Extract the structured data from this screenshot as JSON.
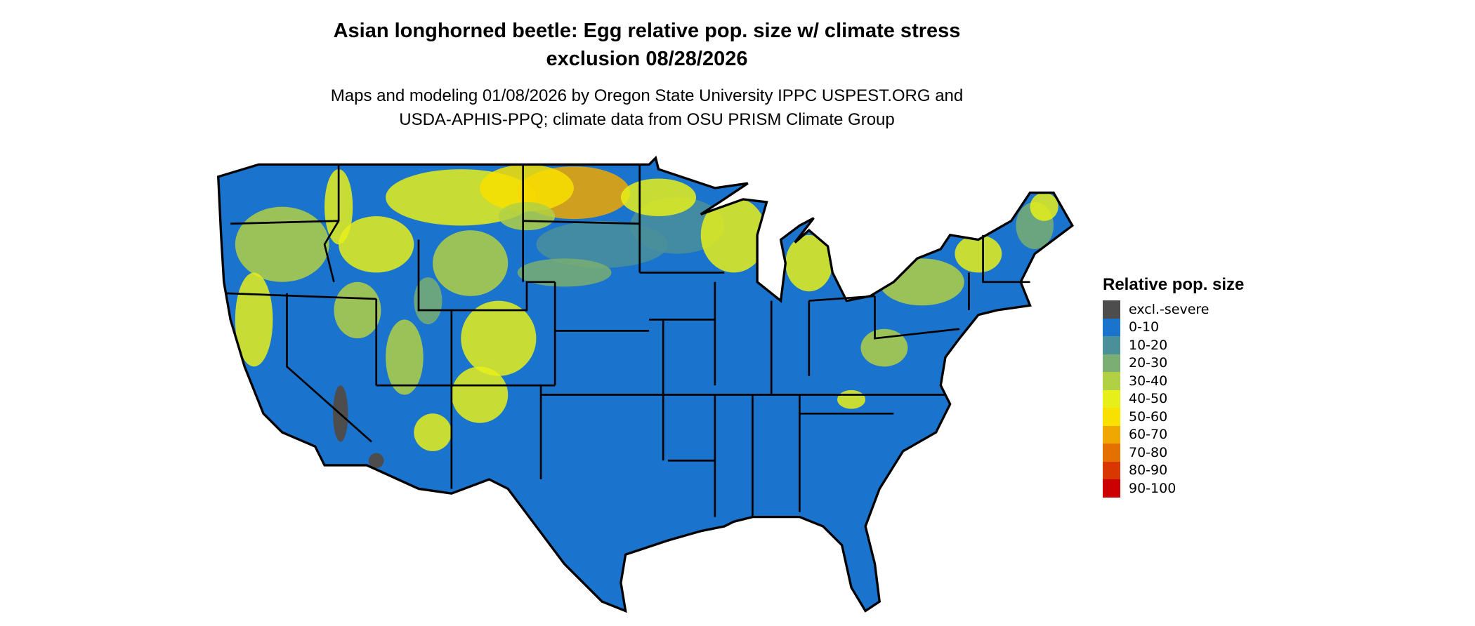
{
  "title": {
    "line1": "Asian longhorned beetle: Egg relative pop. size w/ climate stress",
    "line2": "exclusion 08/28/2026"
  },
  "subtitle": {
    "line1": "Maps and modeling 01/08/2026 by Oregon State University IPPC USPEST.ORG and",
    "line2": "USDA-APHIS-PPQ; climate data from OSU PRISM Climate Group"
  },
  "map": {
    "region": "Contiguous United States",
    "dominant_class": "0-10",
    "border_color": "#000000"
  },
  "legend": {
    "title": "Relative pop. size",
    "items": [
      {
        "label": "excl.-severe",
        "color": "#4d4d4d"
      },
      {
        "label": "0-10",
        "color": "#1a73cc"
      },
      {
        "label": "10-20",
        "color": "#4a8f9a"
      },
      {
        "label": "20-30",
        "color": "#7aae72"
      },
      {
        "label": "30-40",
        "color": "#b2d044"
      },
      {
        "label": "40-50",
        "color": "#e6ef1a"
      },
      {
        "label": "50-60",
        "color": "#f8e000"
      },
      {
        "label": "60-70",
        "color": "#f0a800"
      },
      {
        "label": "70-80",
        "color": "#e47000"
      },
      {
        "label": "80-90",
        "color": "#d83800"
      },
      {
        "label": "90-100",
        "color": "#cc0000"
      }
    ]
  }
}
